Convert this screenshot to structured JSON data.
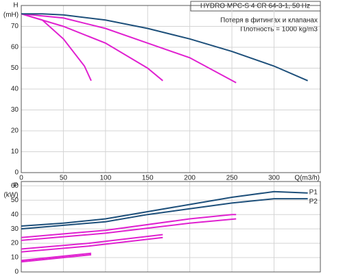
{
  "chart_data": [
    {
      "type": "line",
      "title": "HYDRO MPC-S 4 CR 64-3-1, 50 Hz",
      "annotations": [
        "Потеря в фитингах и клапанах",
        "Плотность = 1000 kg/m3"
      ],
      "y_label": "H",
      "y_unit": "(mH)",
      "x_label": "Q(m3/h)",
      "xlim": [
        0,
        355
      ],
      "xticks": [
        0,
        50,
        100,
        150,
        200,
        250,
        300
      ],
      "ylim": [
        0,
        80
      ],
      "yticks": [
        0,
        10,
        20,
        30,
        40,
        50,
        60,
        70
      ],
      "grid": true,
      "series": [
        {
          "color": "#e020d0",
          "x": [
            0,
            25,
            50,
            75,
            83
          ],
          "values": [
            76,
            73,
            64,
            51,
            44
          ]
        },
        {
          "color": "#e020d0",
          "x": [
            0,
            50,
            100,
            150,
            168
          ],
          "values": [
            76,
            70,
            62,
            50,
            44
          ]
        },
        {
          "color": "#e020d0",
          "x": [
            0,
            50,
            100,
            150,
            200,
            255
          ],
          "values": [
            76,
            74,
            69,
            62,
            55,
            43
          ]
        },
        {
          "color": "#1d4f7a",
          "x": [
            0,
            25,
            50,
            100,
            150,
            200,
            250,
            300,
            340
          ],
          "values": [
            76,
            76,
            75.5,
            73,
            69,
            64,
            58,
            51,
            44
          ]
        }
      ]
    },
    {
      "type": "line",
      "y_label": "P",
      "y_unit": "(kW)",
      "xlim": [
        0,
        355
      ],
      "xticks": [
        0,
        50,
        100,
        150,
        200,
        250,
        300
      ],
      "ylim": [
        0,
        63
      ],
      "yticks": [
        0,
        10,
        20,
        30,
        40,
        50,
        60
      ],
      "grid": true,
      "series": [
        {
          "name": "P1",
          "color": "#1d4f7a",
          "x": [
            0,
            50,
            100,
            150,
            200,
            250,
            300,
            340
          ],
          "values": [
            32,
            34,
            37,
            42,
            47,
            52,
            56,
            55
          ]
        },
        {
          "name": "P2",
          "color": "#1d4f7a",
          "x": [
            0,
            100,
            150,
            200,
            250,
            300,
            340
          ],
          "values": [
            30,
            35,
            40,
            44,
            48,
            51,
            51
          ]
        },
        {
          "color": "#e020d0",
          "x": [
            0,
            100,
            200,
            250,
            255
          ],
          "values": [
            24,
            29,
            37,
            40,
            40
          ]
        },
        {
          "color": "#e020d0",
          "x": [
            0,
            100,
            200,
            255
          ],
          "values": [
            22,
            27,
            34,
            37
          ]
        },
        {
          "color": "#e020d0",
          "x": [
            0,
            80,
            168
          ],
          "values": [
            16,
            20,
            26
          ]
        },
        {
          "color": "#e020d0",
          "x": [
            0,
            80,
            168
          ],
          "values": [
            14,
            18,
            24
          ]
        },
        {
          "color": "#e020d0",
          "x": [
            0,
            83
          ],
          "values": [
            8,
            13
          ]
        },
        {
          "color": "#e020d0",
          "x": [
            0,
            83
          ],
          "values": [
            7,
            12
          ]
        }
      ]
    }
  ]
}
